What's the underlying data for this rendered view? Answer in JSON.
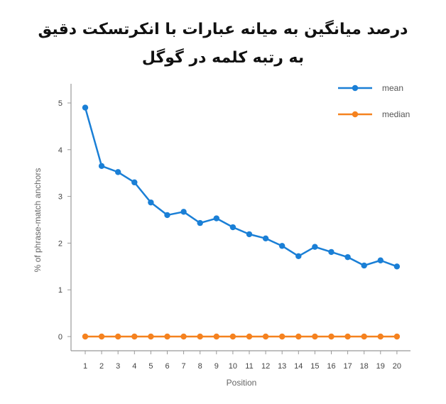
{
  "chart_data": {
    "type": "line",
    "title_lines": [
      "درصد میانگین به میانه عبارات با انکرتسکت دقیق",
      "به رتبه کلمه در گوگل"
    ],
    "xlabel": "Position",
    "ylabel": "% of phrase-match anchors",
    "categories": [
      "1",
      "2",
      "3",
      "4",
      "5",
      "6",
      "7",
      "8",
      "9",
      "10",
      "11",
      "12",
      "13",
      "14",
      "15",
      "16",
      "17",
      "18",
      "19",
      "20"
    ],
    "y_ticks": [
      0,
      1,
      2,
      3,
      4,
      5
    ],
    "ylim": [
      0,
      5.5
    ],
    "grid": false,
    "legend_placement": "top-right",
    "series": [
      {
        "name": "mean",
        "color": "#1a7fd6",
        "values": [
          4.9,
          3.65,
          3.52,
          3.3,
          2.87,
          2.6,
          2.67,
          2.43,
          2.53,
          2.34,
          2.19,
          2.1,
          1.94,
          1.72,
          1.92,
          1.81,
          1.7,
          1.52,
          1.63,
          1.5
        ]
      },
      {
        "name": "median",
        "color": "#f5821f",
        "values": [
          0,
          0,
          0,
          0,
          0,
          0,
          0,
          0,
          0,
          0,
          0,
          0,
          0,
          0,
          0,
          0,
          0,
          0,
          0,
          0
        ]
      }
    ]
  }
}
